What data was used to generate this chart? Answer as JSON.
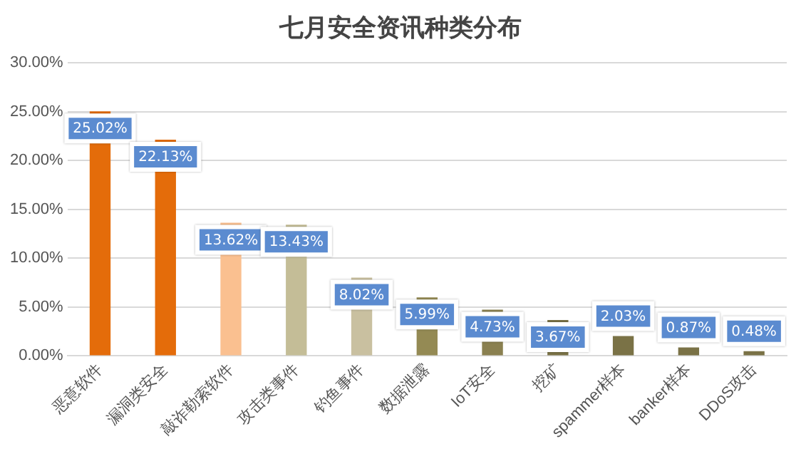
{
  "chart_data": {
    "type": "bar",
    "title": "七月安全资讯种类分布",
    "categories": [
      "恶意软件",
      "漏洞类安全",
      "敲诈勒索软件",
      "攻击类事件",
      "钓鱼事件",
      "数据泄露",
      "IoT安全",
      "挖矿",
      "spammer样本",
      "banker样本",
      "DDoS攻击"
    ],
    "values": [
      25.02,
      22.13,
      13.62,
      13.43,
      8.02,
      5.99,
      4.73,
      3.67,
      2.03,
      0.87,
      0.48
    ],
    "colors": [
      "#e46c0a",
      "#e46c0a",
      "#fac090",
      "#c4bd97",
      "#c9c0a0",
      "#948a54",
      "#8a8050",
      "#7a7246",
      "#7a7246",
      "#7a7246",
      "#7a7246"
    ],
    "value_labels": [
      "25.02%",
      "22.13%",
      "13.62%",
      "13.43%",
      "8.02%",
      "5.99%",
      "4.73%",
      "3.67%",
      "2.03%",
      "0.87%",
      "0.48%"
    ],
    "ylim": [
      0,
      30
    ],
    "yticks": [
      {
        "value": 0,
        "label": "0.00%"
      },
      {
        "value": 5,
        "label": "5.00%"
      },
      {
        "value": 10,
        "label": "10.00%"
      },
      {
        "value": 15,
        "label": "15.00%"
      },
      {
        "value": 20,
        "label": "20.00%"
      },
      {
        "value": 25,
        "label": "25.00%"
      },
      {
        "value": 30,
        "label": "30.00%"
      }
    ],
    "grid": "y",
    "legend": false
  }
}
